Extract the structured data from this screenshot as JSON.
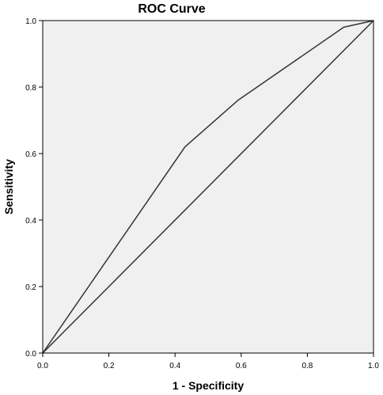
{
  "chart_data": {
    "type": "line",
    "title": "ROC Curve",
    "xlabel": "1 - Specificity",
    "ylabel": "Sensitivity",
    "xlim": [
      0,
      1
    ],
    "ylim": [
      0,
      1
    ],
    "x_ticks": [
      "0.0",
      "0.2",
      "0.4",
      "0.6",
      "0.8",
      "1.0"
    ],
    "y_ticks": [
      "0.0",
      "0.2",
      "0.4",
      "0.6",
      "0.8",
      "1.0"
    ],
    "grid": false,
    "series": [
      {
        "x": [
          0,
          0.43,
          0.59,
          0.91,
          1
        ],
        "y": [
          0,
          0.62,
          0.76,
          0.98,
          1
        ]
      },
      {
        "x": [
          0,
          1
        ],
        "y": [
          0,
          1
        ]
      }
    ],
    "colors": {
      "plot_background": "#f0f0f0",
      "line": "#333333",
      "frame": "#000000"
    }
  }
}
